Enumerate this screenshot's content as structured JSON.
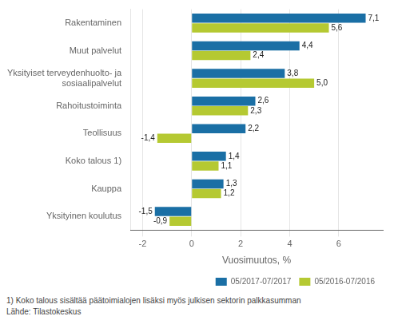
{
  "chart_data": {
    "type": "bar",
    "orientation": "horizontal",
    "categories": [
      "Rakentaminen",
      "Muut palvelut",
      "Yksityiset terveydenhuolto- ja\nsosiaalipalvelut",
      "Rahoitustoiminta",
      "Teollisuus",
      "Koko talous 1)",
      "Kauppa",
      "Yksityinen koulutus"
    ],
    "series": [
      {
        "name": "05/2017-07/2017",
        "color": "#1a6fa5",
        "values": [
          7.1,
          4.4,
          3.8,
          2.6,
          2.2,
          1.4,
          1.3,
          -1.5
        ],
        "value_labels": [
          "7,1",
          "4,4",
          "3,8",
          "2,6",
          "2,2",
          "1,4",
          "1,3",
          "-1,5"
        ]
      },
      {
        "name": "05/2016-07/2016",
        "color": "#b5c932",
        "values": [
          5.6,
          2.4,
          5.0,
          2.3,
          -1.4,
          1.1,
          1.2,
          -0.9
        ],
        "value_labels": [
          "5,6",
          "2,4",
          "5,0",
          "2,3",
          "-1,4",
          "1,1",
          "1,2",
          "-0,9"
        ]
      }
    ],
    "xlabel": "Vuosimuutos, %",
    "xlim": [
      -2.5,
      7.8
    ],
    "xticks": [
      -2,
      0,
      2,
      4,
      6
    ],
    "grid": "x",
    "legend": "lower right",
    "data_labels": true,
    "annotations": [
      "1) Koko talous sisältää päätoimialojen lisäksi myös julkisen sektorin palkkasumman",
      "Lähde: Tilastokeskus"
    ]
  }
}
